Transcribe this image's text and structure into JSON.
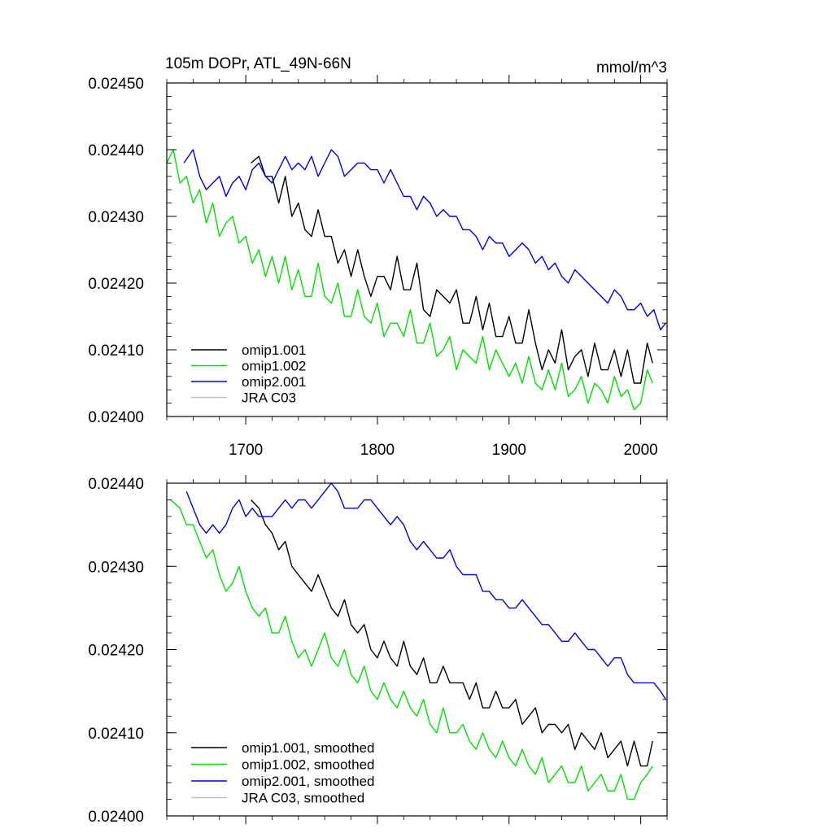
{
  "chart_data": [
    {
      "type": "line",
      "title": "105m DOPr, ATL_49N-66N",
      "units": "mmol/m^3",
      "xlim": [
        1640,
        2020
      ],
      "ylim": [
        0.024,
        0.0245
      ],
      "xticks": [
        1700,
        1800,
        1900,
        2000
      ],
      "xtick_labels": [
        "1700",
        "1800",
        "1900",
        "2000"
      ],
      "yticks": [
        0.024,
        0.0241,
        0.0242,
        0.0243,
        0.0244,
        0.0245
      ],
      "ytick_labels": [
        "0.02400",
        "0.02410",
        "0.02420",
        "0.02430",
        "0.02440",
        "0.02450"
      ],
      "legend_position": "bottom-left",
      "series": [
        {
          "name": "omip1.001",
          "color": "#000000",
          "x": [
            1704,
            1710,
            1715,
            1720,
            1725,
            1730,
            1735,
            1740,
            1745,
            1750,
            1755,
            1760,
            1765,
            1770,
            1775,
            1780,
            1785,
            1790,
            1795,
            1800,
            1805,
            1810,
            1815,
            1820,
            1825,
            1830,
            1835,
            1840,
            1845,
            1850,
            1855,
            1860,
            1865,
            1870,
            1875,
            1880,
            1885,
            1890,
            1895,
            1900,
            1905,
            1910,
            1915,
            1920,
            1925,
            1930,
            1935,
            1940,
            1945,
            1950,
            1955,
            1960,
            1965,
            1970,
            1975,
            1980,
            1985,
            1990,
            1995,
            2000,
            2005,
            2009
          ],
          "values": [
            0.02438,
            0.02439,
            0.02436,
            0.02436,
            0.02432,
            0.02436,
            0.0243,
            0.02432,
            0.02428,
            0.02427,
            0.02431,
            0.02427,
            0.02427,
            0.02423,
            0.02425,
            0.02421,
            0.02425,
            0.02421,
            0.02418,
            0.02421,
            0.02421,
            0.02419,
            0.02424,
            0.02419,
            0.02419,
            0.02423,
            0.02416,
            0.02415,
            0.02419,
            0.02418,
            0.02417,
            0.02419,
            0.02414,
            0.02414,
            0.02418,
            0.02413,
            0.02417,
            0.02412,
            0.02412,
            0.02415,
            0.02411,
            0.02411,
            0.02416,
            0.02411,
            0.02407,
            0.0241,
            0.02408,
            0.02413,
            0.02407,
            0.02409,
            0.0241,
            0.02406,
            0.02411,
            0.02407,
            0.02407,
            0.0241,
            0.02406,
            0.0241,
            0.02405,
            0.02405,
            0.02411,
            0.02408
          ]
        },
        {
          "name": "omip1.002",
          "color": "#00e000",
          "x": [
            1640,
            1645,
            1650,
            1655,
            1660,
            1665,
            1670,
            1675,
            1680,
            1685,
            1690,
            1695,
            1700,
            1705,
            1710,
            1715,
            1720,
            1725,
            1730,
            1735,
            1740,
            1745,
            1750,
            1755,
            1760,
            1765,
            1770,
            1775,
            1780,
            1785,
            1790,
            1795,
            1800,
            1805,
            1810,
            1815,
            1820,
            1825,
            1830,
            1835,
            1840,
            1845,
            1850,
            1855,
            1860,
            1865,
            1870,
            1875,
            1880,
            1885,
            1890,
            1895,
            1900,
            1905,
            1910,
            1915,
            1920,
            1925,
            1930,
            1935,
            1940,
            1945,
            1950,
            1955,
            1960,
            1965,
            1970,
            1975,
            1980,
            1985,
            1990,
            1995,
            2000,
            2005,
            2009
          ],
          "values": [
            0.02438,
            0.0244,
            0.02435,
            0.02436,
            0.02432,
            0.02434,
            0.02429,
            0.02432,
            0.02427,
            0.02429,
            0.0243,
            0.02426,
            0.02427,
            0.02423,
            0.02425,
            0.02421,
            0.02424,
            0.0242,
            0.02424,
            0.02419,
            0.02422,
            0.02418,
            0.02418,
            0.02423,
            0.02418,
            0.02417,
            0.0242,
            0.02415,
            0.02415,
            0.02419,
            0.02415,
            0.02414,
            0.02417,
            0.02412,
            0.02414,
            0.02414,
            0.02412,
            0.02416,
            0.02411,
            0.02411,
            0.02414,
            0.02409,
            0.0241,
            0.02412,
            0.02407,
            0.0241,
            0.02409,
            0.02408,
            0.02412,
            0.02407,
            0.0241,
            0.02408,
            0.02406,
            0.02408,
            0.02405,
            0.02409,
            0.02405,
            0.02404,
            0.02407,
            0.02404,
            0.02408,
            0.02403,
            0.02404,
            0.02406,
            0.02402,
            0.02405,
            0.02404,
            0.02402,
            0.02406,
            0.02403,
            0.02404,
            0.02401,
            0.02402,
            0.02407,
            0.02405
          ]
        },
        {
          "name": "omip2.001",
          "color": "#0000e0",
          "x": [
            1653,
            1660,
            1665,
            1670,
            1675,
            1680,
            1685,
            1690,
            1695,
            1700,
            1705,
            1710,
            1715,
            1720,
            1725,
            1730,
            1735,
            1740,
            1745,
            1750,
            1755,
            1760,
            1765,
            1770,
            1775,
            1780,
            1785,
            1790,
            1795,
            1800,
            1805,
            1810,
            1815,
            1820,
            1825,
            1830,
            1835,
            1840,
            1845,
            1850,
            1855,
            1860,
            1865,
            1870,
            1875,
            1880,
            1885,
            1890,
            1895,
            1900,
            1905,
            1910,
            1915,
            1920,
            1925,
            1930,
            1935,
            1940,
            1945,
            1950,
            1955,
            1960,
            1965,
            1970,
            1975,
            1980,
            1985,
            1990,
            1995,
            2000,
            2005,
            2010,
            2015,
            2019
          ],
          "values": [
            0.02438,
            0.0244,
            0.02436,
            0.02434,
            0.02435,
            0.02436,
            0.02433,
            0.02435,
            0.02436,
            0.02434,
            0.02437,
            0.02438,
            0.02436,
            0.02435,
            0.02437,
            0.02439,
            0.02437,
            0.02438,
            0.02437,
            0.02439,
            0.02436,
            0.02438,
            0.0244,
            0.02439,
            0.02436,
            0.02437,
            0.02438,
            0.02438,
            0.02437,
            0.02437,
            0.02435,
            0.02437,
            0.02435,
            0.02433,
            0.02433,
            0.02431,
            0.02433,
            0.02432,
            0.0243,
            0.02431,
            0.0243,
            0.0243,
            0.02428,
            0.02428,
            0.02427,
            0.02425,
            0.02427,
            0.02426,
            0.02426,
            0.02424,
            0.02425,
            0.02426,
            0.02425,
            0.02423,
            0.02424,
            0.02422,
            0.02423,
            0.02421,
            0.0242,
            0.02422,
            0.02421,
            0.0242,
            0.02419,
            0.02418,
            0.02417,
            0.02419,
            0.02418,
            0.02416,
            0.02416,
            0.02417,
            0.02415,
            0.02416,
            0.02413,
            0.02414
          ]
        },
        {
          "name": "JRA C03",
          "color": "#c0c0c0",
          "x": [],
          "values": []
        }
      ]
    },
    {
      "type": "line",
      "title": "",
      "xlim": [
        1640,
        2020
      ],
      "ylim": [
        0.024,
        0.0244
      ],
      "xticks": [
        1700,
        1800,
        1900,
        2000
      ],
      "xtick_labels": [
        "",
        "",
        "",
        ""
      ],
      "yticks": [
        0.024,
        0.0241,
        0.0242,
        0.0243,
        0.0244
      ],
      "ytick_labels": [
        "0.02400",
        "0.02410",
        "0.02420",
        "0.02430",
        "0.02440"
      ],
      "legend_position": "bottom-left",
      "series": [
        {
          "name": "omip1.001, smoothed",
          "color": "#000000",
          "x": [
            1704,
            1710,
            1715,
            1720,
            1725,
            1730,
            1735,
            1740,
            1745,
            1750,
            1755,
            1760,
            1765,
            1770,
            1775,
            1780,
            1785,
            1790,
            1795,
            1800,
            1805,
            1810,
            1815,
            1820,
            1825,
            1830,
            1835,
            1840,
            1845,
            1850,
            1855,
            1860,
            1865,
            1870,
            1875,
            1880,
            1885,
            1890,
            1895,
            1900,
            1905,
            1910,
            1915,
            1920,
            1925,
            1930,
            1935,
            1940,
            1945,
            1950,
            1955,
            1960,
            1965,
            1970,
            1975,
            1980,
            1985,
            1990,
            1995,
            2000,
            2005,
            2009
          ],
          "values": [
            0.02438,
            0.02437,
            0.02435,
            0.02434,
            0.02432,
            0.02433,
            0.0243,
            0.02429,
            0.02428,
            0.02427,
            0.02429,
            0.02427,
            0.02425,
            0.02424,
            0.02426,
            0.02423,
            0.02422,
            0.02423,
            0.0242,
            0.02419,
            0.02421,
            0.02419,
            0.02418,
            0.02421,
            0.02418,
            0.02417,
            0.02419,
            0.02416,
            0.02416,
            0.02418,
            0.02416,
            0.02416,
            0.02416,
            0.02414,
            0.02416,
            0.02413,
            0.02413,
            0.02415,
            0.02413,
            0.02413,
            0.02414,
            0.02411,
            0.02412,
            0.02413,
            0.0241,
            0.02411,
            0.02411,
            0.0241,
            0.02411,
            0.02408,
            0.0241,
            0.02409,
            0.02408,
            0.0241,
            0.02407,
            0.02408,
            0.02409,
            0.02406,
            0.02409,
            0.02406,
            0.02406,
            0.02409
          ]
        },
        {
          "name": "omip1.002, smoothed",
          "color": "#00e000",
          "x": [
            1643,
            1650,
            1655,
            1660,
            1665,
            1670,
            1675,
            1680,
            1685,
            1690,
            1695,
            1700,
            1705,
            1710,
            1715,
            1720,
            1725,
            1730,
            1735,
            1740,
            1745,
            1750,
            1755,
            1760,
            1765,
            1770,
            1775,
            1780,
            1785,
            1790,
            1795,
            1800,
            1805,
            1810,
            1815,
            1820,
            1825,
            1830,
            1835,
            1840,
            1845,
            1850,
            1855,
            1860,
            1865,
            1870,
            1875,
            1880,
            1885,
            1890,
            1895,
            1900,
            1905,
            1910,
            1915,
            1920,
            1925,
            1930,
            1935,
            1940,
            1945,
            1950,
            1955,
            1960,
            1965,
            1970,
            1975,
            1980,
            1985,
            1990,
            1995,
            2000,
            2005,
            2009
          ],
          "values": [
            0.02438,
            0.02437,
            0.02435,
            0.02435,
            0.02433,
            0.02431,
            0.02432,
            0.02429,
            0.02427,
            0.02428,
            0.0243,
            0.02427,
            0.02425,
            0.02424,
            0.02425,
            0.02422,
            0.02422,
            0.02424,
            0.02421,
            0.02419,
            0.0242,
            0.02418,
            0.0242,
            0.02422,
            0.02419,
            0.02418,
            0.0242,
            0.02417,
            0.02416,
            0.02418,
            0.02415,
            0.02414,
            0.02416,
            0.02414,
            0.02413,
            0.02415,
            0.02413,
            0.02412,
            0.02414,
            0.02411,
            0.0241,
            0.02413,
            0.0241,
            0.0241,
            0.02411,
            0.02409,
            0.02408,
            0.0241,
            0.02408,
            0.02407,
            0.02409,
            0.02407,
            0.02406,
            0.02408,
            0.02406,
            0.02405,
            0.02407,
            0.02404,
            0.02405,
            0.02406,
            0.02404,
            0.02404,
            0.02406,
            0.02403,
            0.02404,
            0.02405,
            0.02403,
            0.02403,
            0.02405,
            0.02402,
            0.02402,
            0.02404,
            0.02405,
            0.02406
          ]
        },
        {
          "name": "omip2.001, smoothed",
          "color": "#0000e0",
          "x": [
            1655,
            1660,
            1665,
            1670,
            1675,
            1680,
            1685,
            1690,
            1695,
            1700,
            1705,
            1710,
            1715,
            1720,
            1725,
            1730,
            1735,
            1740,
            1745,
            1750,
            1755,
            1760,
            1765,
            1770,
            1775,
            1780,
            1785,
            1790,
            1795,
            1800,
            1805,
            1810,
            1815,
            1820,
            1825,
            1830,
            1835,
            1840,
            1845,
            1850,
            1855,
            1860,
            1865,
            1870,
            1875,
            1880,
            1885,
            1890,
            1895,
            1900,
            1905,
            1910,
            1915,
            1920,
            1925,
            1930,
            1935,
            1940,
            1945,
            1950,
            1955,
            1960,
            1965,
            1970,
            1975,
            1980,
            1985,
            1990,
            1995,
            2000,
            2005,
            2010,
            2015,
            2019
          ],
          "values": [
            0.02439,
            0.02437,
            0.02435,
            0.02434,
            0.02435,
            0.02434,
            0.02435,
            0.02437,
            0.02438,
            0.02436,
            0.02437,
            0.02436,
            0.02436,
            0.02436,
            0.02437,
            0.02438,
            0.02437,
            0.02438,
            0.02438,
            0.02437,
            0.02438,
            0.02439,
            0.0244,
            0.02439,
            0.02437,
            0.02437,
            0.02437,
            0.02438,
            0.02438,
            0.02437,
            0.02436,
            0.02435,
            0.02436,
            0.02435,
            0.02433,
            0.02432,
            0.02433,
            0.02432,
            0.02431,
            0.02431,
            0.02432,
            0.0243,
            0.02429,
            0.02429,
            0.02429,
            0.02427,
            0.02427,
            0.02426,
            0.02426,
            0.02425,
            0.02425,
            0.02426,
            0.02425,
            0.02424,
            0.02423,
            0.02423,
            0.02422,
            0.02421,
            0.02421,
            0.02422,
            0.02421,
            0.0242,
            0.0242,
            0.02419,
            0.02418,
            0.02419,
            0.02419,
            0.02417,
            0.02416,
            0.02416,
            0.02416,
            0.02416,
            0.02415,
            0.02414
          ]
        },
        {
          "name": "JRA C03, smoothed",
          "color": "#c0c0c0",
          "x": [],
          "values": []
        }
      ]
    }
  ]
}
